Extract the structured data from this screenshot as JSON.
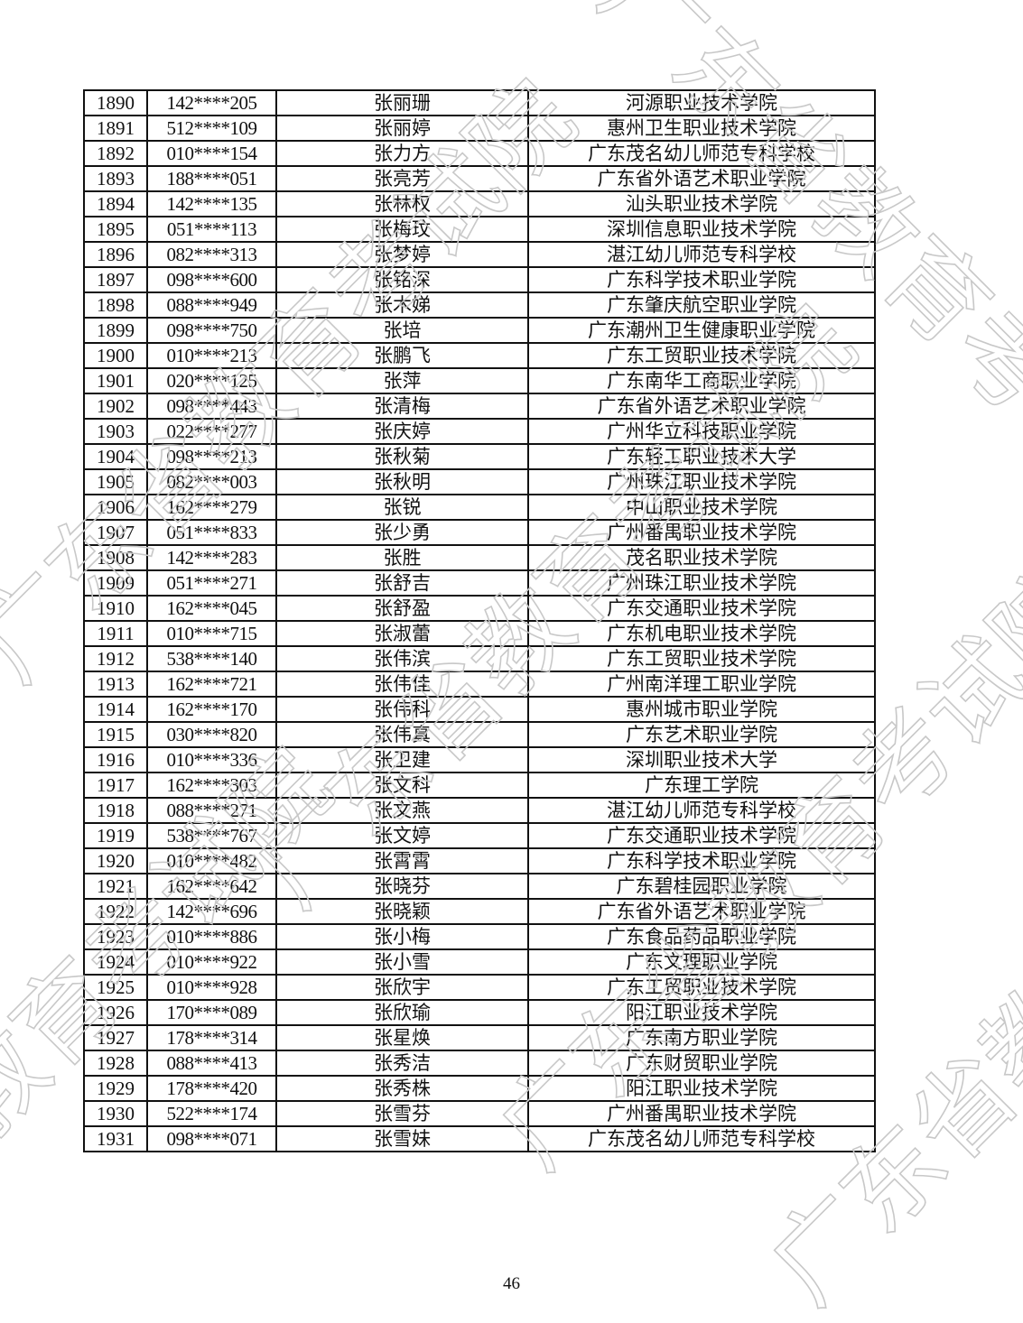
{
  "watermark": "广东省教育考试院",
  "rows": [
    [
      "1890",
      "142****205",
      "张丽珊",
      "河源职业技术学院"
    ],
    [
      "1891",
      "512****109",
      "张丽婷",
      "惠州卫生职业技术学院"
    ],
    [
      "1892",
      "010****154",
      "张力方",
      "广东茂名幼儿师范专科学校"
    ],
    [
      "1893",
      "188****051",
      "张亮芳",
      "广东省外语艺术职业学院"
    ],
    [
      "1894",
      "142****135",
      "张林权",
      "汕头职业技术学院"
    ],
    [
      "1895",
      "051****113",
      "张梅玟",
      "深圳信息职业技术学院"
    ],
    [
      "1896",
      "082****313",
      "张梦婷",
      "湛江幼儿师范专科学校"
    ],
    [
      "1897",
      "098****600",
      "张铭深",
      "广东科学技术职业学院"
    ],
    [
      "1898",
      "088****949",
      "张木娣",
      "广东肇庆航空职业学院"
    ],
    [
      "1899",
      "098****750",
      "张培",
      "广东潮州卫生健康职业学院"
    ],
    [
      "1900",
      "010****213",
      "张鹏飞",
      "广东工贸职业技术学院"
    ],
    [
      "1901",
      "020****125",
      "张萍",
      "广东南华工商职业学院"
    ],
    [
      "1902",
      "098****443",
      "张清梅",
      "广东省外语艺术职业学院"
    ],
    [
      "1903",
      "022****277",
      "张庆婷",
      "广州华立科技职业学院"
    ],
    [
      "1904",
      "098****213",
      "张秋菊",
      "广东轻工职业技术大学"
    ],
    [
      "1905",
      "082****003",
      "张秋明",
      "广州珠江职业技术学院"
    ],
    [
      "1906",
      "162****279",
      "张锐",
      "中山职业技术学院"
    ],
    [
      "1907",
      "051****833",
      "张少勇",
      "广州番禺职业技术学院"
    ],
    [
      "1908",
      "142****283",
      "张胜",
      "茂名职业技术学院"
    ],
    [
      "1909",
      "051****271",
      "张舒吉",
      "广州珠江职业技术学院"
    ],
    [
      "1910",
      "162****045",
      "张舒盈",
      "广东交通职业技术学院"
    ],
    [
      "1911",
      "010****715",
      "张淑蕾",
      "广东机电职业技术学院"
    ],
    [
      "1912",
      "538****140",
      "张伟滨",
      "广东工贸职业技术学院"
    ],
    [
      "1913",
      "162****721",
      "张伟佳",
      "广州南洋理工职业学院"
    ],
    [
      "1914",
      "162****170",
      "张伟科",
      "惠州城市职业学院"
    ],
    [
      "1915",
      "030****820",
      "张伟真",
      "广东艺术职业学院"
    ],
    [
      "1916",
      "010****336",
      "张卫建",
      "深圳职业技术大学"
    ],
    [
      "1917",
      "162****303",
      "张文科",
      "广东理工学院"
    ],
    [
      "1918",
      "088****271",
      "张文燕",
      "湛江幼儿师范专科学校"
    ],
    [
      "1919",
      "538****767",
      "张文婷",
      "广东交通职业技术学院"
    ],
    [
      "1920",
      "010****482",
      "张霄霄",
      "广东科学技术职业学院"
    ],
    [
      "1921",
      "162****642",
      "张晓芬",
      "广东碧桂园职业学院"
    ],
    [
      "1922",
      "142****696",
      "张晓颖",
      "广东省外语艺术职业学院"
    ],
    [
      "1923",
      "010****886",
      "张小梅",
      "广东食品药品职业学院"
    ],
    [
      "1924",
      "010****922",
      "张小雪",
      "广东文理职业学院"
    ],
    [
      "1925",
      "010****928",
      "张欣宇",
      "广东工贸职业技术学院"
    ],
    [
      "1926",
      "170****089",
      "张欣瑜",
      "阳江职业技术学院"
    ],
    [
      "1927",
      "178****314",
      "张星焕",
      "广东南方职业学院"
    ],
    [
      "1928",
      "088****413",
      "张秀洁",
      "广东财贸职业学院"
    ],
    [
      "1929",
      "178****420",
      "张秀株",
      "阳江职业技术学院"
    ],
    [
      "1930",
      "522****174",
      "张雪芬",
      "广州番禺职业技术学院"
    ],
    [
      "1931",
      "098****071",
      "张雪妹",
      "广东茂名幼儿师范专科学校"
    ]
  ],
  "page_number": "46"
}
